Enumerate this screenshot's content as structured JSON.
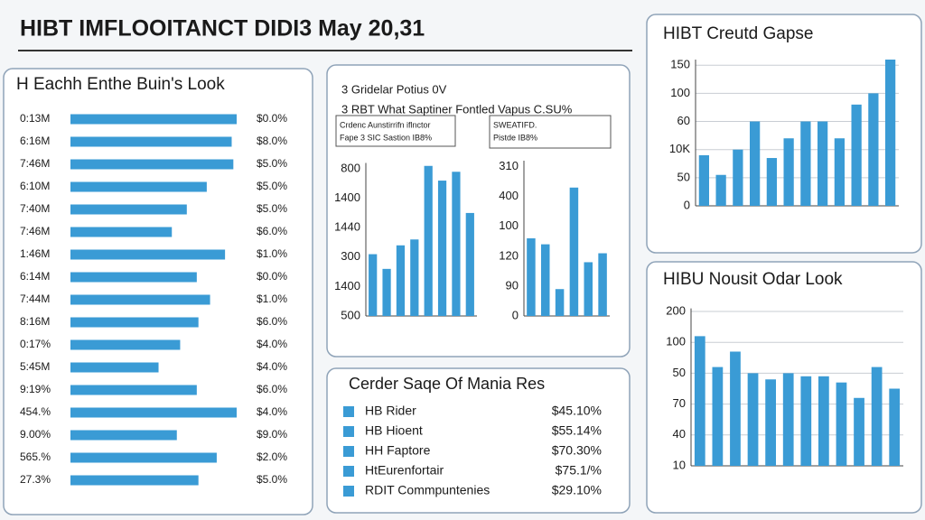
{
  "title": "HIBT IMFLOOITANCT DIDI3 May 20,31",
  "chart_data": [
    {
      "type": "hbar",
      "title": "H Eachh Enthe Buin's Look",
      "categories": [
        "0:13M",
        "6:16M",
        "7:46M",
        "6:10M",
        "7:40M",
        "7:46M",
        "1:46M",
        "6:14M",
        "7:44M",
        "8:16M",
        "0:17%",
        "5:45M",
        "9:19%",
        "454.%",
        "9.00%",
        "565.%",
        "27.3%"
      ],
      "values": [
        100,
        97,
        98,
        82,
        70,
        61,
        93,
        76,
        84,
        77,
        66,
        53,
        76,
        100,
        64,
        88,
        77
      ],
      "right_labels": [
        "$0.0%",
        "$8.0%",
        "$5.0%",
        "$5.0%",
        "$5.0%",
        "$6.0%",
        "$1.0%",
        "$0.0%",
        "$1.0%",
        "$6.0%",
        "$4.0%",
        "$4.0%",
        "$6.0%",
        "$4.0%",
        "$9.0%",
        "$2.0%",
        "$5.0%"
      ],
      "xlim": [
        0,
        100
      ],
      "color": "#3a9bd5"
    },
    {
      "type": "bar",
      "categories": [
        null,
        null,
        null,
        null,
        null,
        null,
        null,
        null
      ],
      "values": [
        2.1,
        1.6,
        2.4,
        2.6,
        5.1,
        4.6,
        4.9,
        3.5
      ],
      "ylim": [
        0,
        5.2
      ],
      "yticks": [
        {
          "value": 0,
          "label": "500"
        },
        {
          "value": 1,
          "label": "1400"
        },
        {
          "value": 2,
          "label": "300"
        },
        {
          "value": 3,
          "label": "1440"
        },
        {
          "value": 4,
          "label": "1400"
        },
        {
          "value": 5,
          "label": "800"
        }
      ],
      "grid": false,
      "color": "#3a9bd5"
    },
    {
      "type": "bar",
      "categories": [
        null,
        null,
        null,
        null,
        null,
        null
      ],
      "values": [
        2.6,
        2.4,
        0.9,
        4.3,
        1.8,
        2.1
      ],
      "ylim": [
        0,
        5.2
      ],
      "yticks": [
        {
          "value": 0,
          "label": "0"
        },
        {
          "value": 1,
          "label": "90"
        },
        {
          "value": 2,
          "label": "120"
        },
        {
          "value": 3,
          "label": "100"
        },
        {
          "value": 4,
          "label": "400"
        },
        {
          "value": 5,
          "label": "310"
        }
      ],
      "grid": false,
      "color": "#3a9bd5"
    },
    {
      "type": "bar",
      "title": "HIBT Creutd Gapse",
      "categories": [
        null,
        null,
        null,
        null,
        null,
        null,
        null,
        null,
        null,
        null,
        null,
        null
      ],
      "values": [
        1.8,
        1.1,
        2.0,
        3.0,
        1.7,
        2.4,
        3.0,
        3.0,
        2.4,
        3.6,
        4.0,
        5.2
      ],
      "ylim": [
        0,
        5.2
      ],
      "yticks": [
        {
          "value": 0,
          "label": "0"
        },
        {
          "value": 1,
          "label": "50"
        },
        {
          "value": 2,
          "label": "10K"
        },
        {
          "value": 3,
          "label": "60"
        },
        {
          "value": 4,
          "label": "100"
        },
        {
          "value": 5,
          "label": "150"
        }
      ],
      "grid": true,
      "color": "#3a9bd5"
    },
    {
      "type": "bar",
      "title": "HIBU Nousit Odar Look",
      "categories": [
        null,
        null,
        null,
        null,
        null,
        null,
        null,
        null,
        null,
        null,
        null,
        null
      ],
      "values": [
        4.2,
        3.2,
        3.7,
        3.0,
        2.8,
        3.0,
        2.9,
        2.9,
        2.7,
        2.2,
        3.2,
        2.5
      ],
      "ylim": [
        0,
        5.1
      ],
      "yticks": [
        {
          "value": 0,
          "label": "10"
        },
        {
          "value": 1,
          "label": "40"
        },
        {
          "value": 2,
          "label": "70"
        },
        {
          "value": 3,
          "label": "50"
        },
        {
          "value": 4,
          "label": "100"
        },
        {
          "value": 5,
          "label": "200"
        }
      ],
      "grid": true,
      "color": "#3a9bd5"
    }
  ],
  "info_panel": {
    "lines": [
      "3 Gridelar Potius 0V",
      "3 RBT What Saptiner Fontled Vapus C.SU%"
    ],
    "boxes": [
      [
        "Crdenc Aunstirrifn iflnctor",
        "Fape 3 SIC Sastion IB8%"
      ],
      [
        "SWEATIFD.",
        "Pistde IB8%"
      ]
    ]
  },
  "legend_panel": {
    "title": "Cerder Saqe Of Mania Res",
    "items": [
      {
        "name": "HB Rider",
        "value": "$45.10%"
      },
      {
        "name": "HB Hioent",
        "value": "$55.14%"
      },
      {
        "name": "HH Faptore",
        "value": "$70.30%"
      },
      {
        "name": "HtEurenfortair",
        "value": "$75.1/%"
      },
      {
        "name": "RDIT Commpuntenies",
        "value": "$29.10%"
      }
    ]
  }
}
